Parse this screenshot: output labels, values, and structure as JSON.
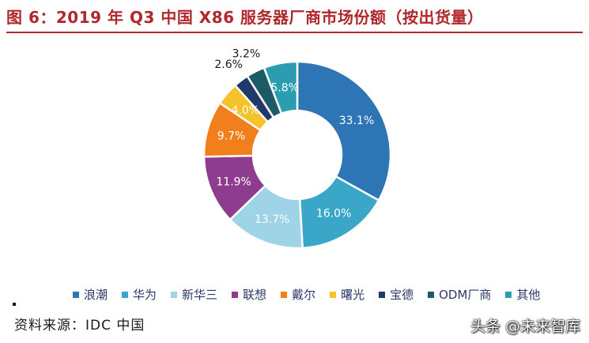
{
  "title": "图 6：2019 年 Q3 中国 X86 服务器厂商市场份额（按出货量）",
  "source": "资料来源：IDC 中国",
  "watermark": "头条 @未来智库",
  "chart_data": {
    "type": "pie",
    "donut": true,
    "legend_position": "bottom",
    "categories": [
      "浪潮",
      "华为",
      "新华三",
      "联想",
      "戴尔",
      "曙光",
      "宝德",
      "ODM厂商",
      "其他"
    ],
    "values": [
      33.1,
      16.0,
      13.7,
      11.9,
      9.7,
      4.0,
      2.6,
      3.2,
      5.8
    ],
    "labels": [
      "33.1%",
      "16.0%",
      "13.7%",
      "11.9%",
      "9.7%",
      "4.0%",
      "2.6%",
      "3.2%",
      "5.8%"
    ],
    "colors": [
      "#2e75b6",
      "#3aa7c9",
      "#9fd3e6",
      "#8e3d8e",
      "#f07f1c",
      "#f5c22a",
      "#1f3a68",
      "#1c5a66",
      "#2c9db0"
    ]
  }
}
